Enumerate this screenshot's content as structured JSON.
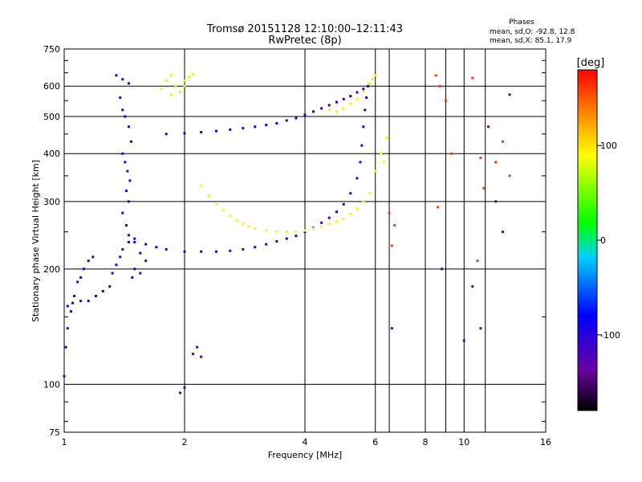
{
  "chart_data": {
    "type": "scatter",
    "title": "Tromsø 20151128 12:10:00–12:11:43",
    "subtitle": "RwPretec (8p)",
    "xlabel": "Frequency [MHz]",
    "ylabel": "Stationary phase Virtual Height [km]",
    "x_scale": "log",
    "y_scale": "log",
    "xlim": [
      1,
      16
    ],
    "ylim": [
      75,
      750
    ],
    "x_ticks": [
      1,
      2,
      4,
      6,
      8,
      10,
      16
    ],
    "y_ticks": [
      75,
      100,
      200,
      300,
      400,
      500,
      600,
      750
    ],
    "grid": true,
    "phase_info": {
      "heading": "Phases",
      "line_o": "mean, sd,O: -92.8, 12.8",
      "line_x": "mean, sd,X:  85.1, 17.9"
    },
    "colorbar": {
      "label": "[deg]",
      "range": [
        -180,
        180
      ],
      "ticks": [
        100,
        0,
        -100
      ],
      "colormap": "rainbow: black-purple-blue-cyan-green-yellow-orange-red"
    },
    "series": [
      {
        "name": "",
        "color_value": -95,
        "points": [
          [
            1.0,
            105
          ],
          [
            1.01,
            125
          ],
          [
            1.02,
            140
          ],
          [
            1.04,
            155
          ],
          [
            1.06,
            170
          ],
          [
            1.08,
            185
          ],
          [
            1.1,
            190
          ],
          [
            1.12,
            200
          ],
          [
            1.15,
            210
          ],
          [
            1.18,
            215
          ],
          [
            1.02,
            160
          ],
          [
            1.05,
            163
          ],
          [
            1.1,
            165
          ],
          [
            1.15,
            165
          ],
          [
            1.2,
            170
          ],
          [
            1.25,
            175
          ],
          [
            1.3,
            180
          ],
          [
            1.32,
            195
          ],
          [
            1.35,
            205
          ],
          [
            1.38,
            215
          ],
          [
            1.4,
            225
          ],
          [
            1.45,
            235
          ],
          [
            1.5,
            240
          ],
          [
            1.6,
            232
          ],
          [
            1.7,
            228
          ],
          [
            1.8,
            225
          ],
          [
            2.0,
            222
          ],
          [
            2.2,
            222
          ],
          [
            2.4,
            222
          ],
          [
            2.6,
            223
          ],
          [
            2.8,
            225
          ],
          [
            3.0,
            228
          ],
          [
            3.2,
            232
          ],
          [
            3.4,
            236
          ],
          [
            3.6,
            240
          ],
          [
            3.8,
            244
          ],
          [
            4.0,
            250
          ],
          [
            4.2,
            256
          ],
          [
            4.4,
            264
          ],
          [
            4.6,
            272
          ],
          [
            4.8,
            282
          ],
          [
            5.0,
            295
          ],
          [
            5.2,
            315
          ],
          [
            5.4,
            345
          ],
          [
            5.5,
            380
          ],
          [
            5.55,
            420
          ],
          [
            5.6,
            470
          ],
          [
            5.65,
            520
          ],
          [
            5.7,
            560
          ],
          [
            5.75,
            600
          ]
        ]
      },
      {
        "name": "",
        "color_value": -100,
        "points": [
          [
            1.35,
            640
          ],
          [
            1.4,
            625
          ],
          [
            1.45,
            610
          ],
          [
            1.38,
            560
          ],
          [
            1.4,
            520
          ],
          [
            1.42,
            500
          ],
          [
            1.45,
            470
          ],
          [
            1.47,
            430
          ],
          [
            1.4,
            400
          ],
          [
            1.42,
            380
          ],
          [
            1.44,
            360
          ],
          [
            1.46,
            340
          ],
          [
            1.43,
            320
          ],
          [
            1.45,
            300
          ],
          [
            1.4,
            280
          ],
          [
            1.43,
            260
          ],
          [
            1.45,
            245
          ],
          [
            1.5,
            235
          ],
          [
            1.55,
            220
          ],
          [
            1.6,
            210
          ],
          [
            1.5,
            200
          ],
          [
            1.55,
            195
          ],
          [
            1.48,
            190
          ]
        ]
      },
      {
        "name": "",
        "color_value": -95,
        "points": [
          [
            1.8,
            450
          ],
          [
            2.0,
            452
          ],
          [
            2.2,
            455
          ],
          [
            2.4,
            458
          ],
          [
            2.6,
            462
          ],
          [
            2.8,
            466
          ],
          [
            3.0,
            470
          ],
          [
            3.2,
            475
          ],
          [
            3.4,
            480
          ],
          [
            3.6,
            488
          ],
          [
            3.8,
            495
          ],
          [
            4.0,
            505
          ],
          [
            4.2,
            515
          ],
          [
            4.4,
            525
          ],
          [
            4.6,
            535
          ],
          [
            4.8,
            545
          ],
          [
            5.0,
            555
          ],
          [
            5.2,
            565
          ],
          [
            5.4,
            578
          ],
          [
            5.6,
            590
          ]
        ]
      },
      {
        "name": "",
        "color_value": 80,
        "points": [
          [
            1.8,
            620
          ],
          [
            1.85,
            640
          ],
          [
            1.9,
            600
          ],
          [
            1.95,
            580
          ],
          [
            2.0,
            620
          ],
          [
            2.05,
            635
          ],
          [
            2.1,
            645
          ],
          [
            1.75,
            590
          ],
          [
            1.85,
            570
          ],
          [
            2.0,
            600
          ]
        ]
      },
      {
        "name": "",
        "color_value": 85,
        "points": [
          [
            2.2,
            330
          ],
          [
            2.3,
            310
          ],
          [
            2.4,
            295
          ],
          [
            2.5,
            285
          ],
          [
            2.6,
            275
          ],
          [
            2.7,
            268
          ],
          [
            2.8,
            262
          ],
          [
            2.9,
            258
          ],
          [
            3.0,
            255
          ],
          [
            3.2,
            252
          ],
          [
            3.4,
            250
          ],
          [
            3.6,
            250
          ],
          [
            3.8,
            250
          ],
          [
            4.0,
            252
          ],
          [
            4.2,
            255
          ],
          [
            4.4,
            258
          ],
          [
            4.6,
            262
          ],
          [
            4.8,
            266
          ],
          [
            5.0,
            270
          ],
          [
            5.2,
            278
          ],
          [
            5.4,
            288
          ],
          [
            5.6,
            300
          ],
          [
            5.8,
            315
          ],
          [
            6.0,
            360
          ],
          [
            6.2,
            400
          ],
          [
            6.4,
            440
          ],
          [
            6.3,
            380
          ]
        ]
      },
      {
        "name": "",
        "color_value": 95,
        "points": [
          [
            4.6,
            520
          ],
          [
            4.8,
            515
          ],
          [
            5.0,
            525
          ],
          [
            5.2,
            540
          ],
          [
            5.4,
            555
          ],
          [
            5.6,
            580
          ],
          [
            5.8,
            610
          ],
          [
            6.0,
            640
          ],
          [
            5.9,
            625
          ]
        ]
      },
      {
        "name": "",
        "color_value": 160,
        "points": [
          [
            6.5,
            280
          ],
          [
            6.7,
            260
          ],
          [
            8.5,
            640
          ],
          [
            8.7,
            600
          ],
          [
            9.0,
            550
          ],
          [
            9.3,
            400
          ],
          [
            10.5,
            630
          ],
          [
            11.0,
            390
          ],
          [
            11.2,
            325
          ],
          [
            12.0,
            380
          ],
          [
            12.5,
            430
          ],
          [
            13.0,
            350
          ],
          [
            8.6,
            290
          ],
          [
            10.8,
            210
          ],
          [
            6.6,
            230
          ]
        ]
      },
      {
        "name": "",
        "color_value": -120,
        "points": [
          [
            1.95,
            95
          ],
          [
            2.0,
            98
          ],
          [
            2.1,
            120
          ],
          [
            2.15,
            125
          ],
          [
            2.2,
            118
          ],
          [
            6.6,
            140
          ],
          [
            8.8,
            200
          ],
          [
            10.0,
            130
          ],
          [
            10.5,
            180
          ],
          [
            11.0,
            140
          ],
          [
            11.5,
            470
          ],
          [
            12.0,
            300
          ],
          [
            12.5,
            250
          ],
          [
            13.0,
            570
          ]
        ]
      }
    ]
  }
}
